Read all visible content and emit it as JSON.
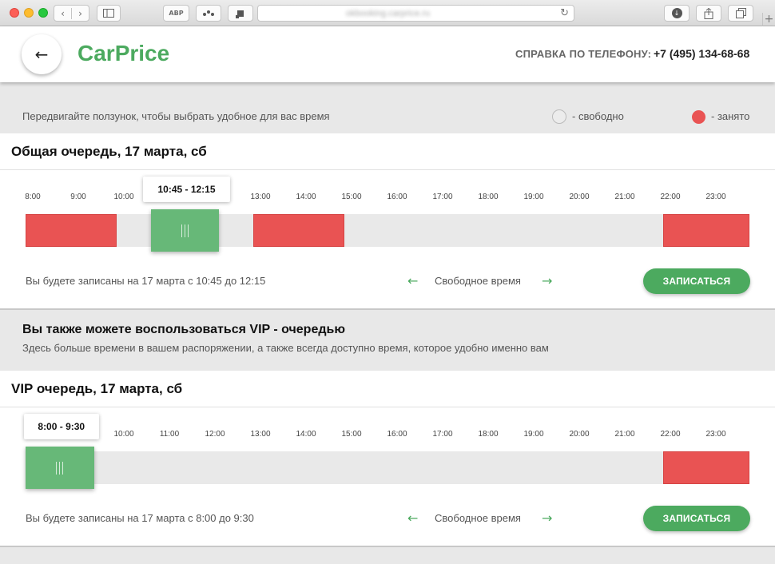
{
  "browser": {
    "url": "okbooking.carprice.ru",
    "ext1_label": "ABP"
  },
  "header": {
    "logo": "CarPrice",
    "phone_label": "СПРАВКА ПО ТЕЛЕФОНУ:",
    "phone_number": "+7 (495) 134-68-68",
    "back_arrow": "←"
  },
  "hint": {
    "text": "Передвигайте ползунок, чтобы выбрать удобное для вас время",
    "free_label": "- свободно",
    "busy_label": "- занято"
  },
  "colors": {
    "brand_green": "#4caa5f",
    "busy_red": "#e95353",
    "free_track": "#e9e9e9"
  },
  "general_queue": {
    "title": "Общая очередь, 17 марта, сб",
    "ticks": [
      "8:00",
      "9:00",
      "10:00",
      "",
      "",
      "13:00",
      "14:00",
      "15:00",
      "16:00",
      "17:00",
      "18:00",
      "19:00",
      "20:00",
      "21:00",
      "22:00",
      "23:00"
    ],
    "busy_ranges": [
      {
        "start": 8.0,
        "end": 10.0
      },
      {
        "start": 13.0,
        "end": 15.0
      },
      {
        "start": 22.0,
        "end": 23.9
      }
    ],
    "selected": {
      "start": 10.75,
      "end": 12.25,
      "label": "10:45 - 12:15"
    },
    "booking_text": "Вы будете записаны на 17 марта с 10:45 до 12:15",
    "free_time_label": "Свободное время",
    "button_label": "ЗАПИСАТЬСЯ"
  },
  "vip_info": {
    "title": "Вы также можете воспользоваться VIP - очередью",
    "subtitle": "Здесь больше времени в вашем распоряжении, а также всегда доступно время, которое удобно именно вам"
  },
  "vip_queue": {
    "title": "VIP очередь, 17 марта, сб",
    "ticks": [
      "8:00",
      "",
      "10:00",
      "11:00",
      "12:00",
      "13:00",
      "14:00",
      "15:00",
      "16:00",
      "17:00",
      "18:00",
      "19:00",
      "20:00",
      "21:00",
      "22:00",
      "23:00"
    ],
    "busy_ranges": [
      {
        "start": 22.0,
        "end": 23.9
      }
    ],
    "selected": {
      "start": 8.0,
      "end": 9.5,
      "label": "8:00 - 9:30"
    },
    "booking_text": "Вы будете записаны на 17 марта с 8:00 до 9:30",
    "free_time_label": "Свободное время",
    "button_label": "ЗАПИСАТЬСЯ"
  }
}
